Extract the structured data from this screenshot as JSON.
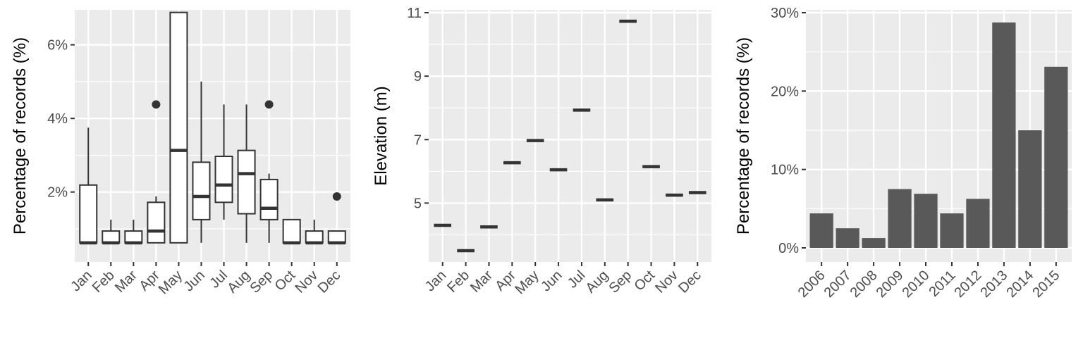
{
  "chart_data": [
    {
      "type": "box",
      "title": "",
      "xlabel": "",
      "ylabel": "Percentage of records (%)",
      "categories": [
        "Jan",
        "Feb",
        "Mar",
        "Apr",
        "May",
        "Jun",
        "Jul",
        "Aug",
        "Sep",
        "Oct",
        "Nov",
        "Dec"
      ],
      "y_ticks": [
        2,
        4,
        6
      ],
      "y_tick_labels": [
        "2%",
        "4%",
        "6%"
      ],
      "ylim": [
        0.1,
        6.95
      ],
      "boxes": [
        {
          "min": 0.62,
          "q1": 0.62,
          "median": 0.62,
          "q3": 2.19,
          "max": 3.75,
          "outliers": []
        },
        {
          "min": 0.62,
          "q1": 0.62,
          "median": 0.62,
          "q3": 0.94,
          "max": 1.25,
          "outliers": []
        },
        {
          "min": 0.62,
          "q1": 0.62,
          "median": 0.62,
          "q3": 0.94,
          "max": 1.25,
          "outliers": []
        },
        {
          "min": 0.62,
          "q1": 0.62,
          "median": 0.94,
          "q3": 1.72,
          "max": 1.88,
          "outliers": [
            4.38
          ]
        },
        {
          "min": 0.62,
          "q1": 0.62,
          "median": 3.13,
          "q3": 6.88,
          "max": 6.88,
          "outliers": []
        },
        {
          "min": 0.62,
          "q1": 1.25,
          "median": 1.88,
          "q3": 2.81,
          "max": 5.0,
          "outliers": []
        },
        {
          "min": 1.25,
          "q1": 1.72,
          "median": 2.19,
          "q3": 2.97,
          "max": 4.38,
          "outliers": []
        },
        {
          "min": 0.62,
          "q1": 1.41,
          "median": 2.5,
          "q3": 3.13,
          "max": 4.38,
          "outliers": []
        },
        {
          "min": 0.62,
          "q1": 1.25,
          "median": 1.56,
          "q3": 2.34,
          "max": 2.5,
          "outliers": [
            4.38
          ]
        },
        {
          "min": 0.62,
          "q1": 0.62,
          "median": 0.62,
          "q3": 1.25,
          "max": 1.25,
          "outliers": []
        },
        {
          "min": 0.62,
          "q1": 0.62,
          "median": 0.62,
          "q3": 0.94,
          "max": 1.25,
          "outliers": []
        },
        {
          "min": 0.62,
          "q1": 0.62,
          "median": 0.62,
          "q3": 0.94,
          "max": 0.94,
          "outliers": [
            1.88
          ]
        }
      ]
    },
    {
      "type": "box",
      "title": "",
      "xlabel": "",
      "ylabel": "Elevation (m)",
      "categories": [
        "Jan",
        "Feb",
        "Mar",
        "Apr",
        "May",
        "Jun",
        "Jul",
        "Aug",
        "Sep",
        "Oct",
        "Nov",
        "Dec"
      ],
      "y_ticks": [
        5,
        7,
        9,
        11
      ],
      "y_tick_labels": [
        "5",
        "7",
        "9",
        "11"
      ],
      "ylim": [
        3.0,
        11.0
      ],
      "values": [
        4.3,
        3.5,
        4.25,
        6.27,
        6.97,
        6.05,
        7.93,
        5.1,
        10.73,
        6.15,
        5.25,
        5.33
      ]
    },
    {
      "type": "bar",
      "title": "",
      "xlabel": "",
      "ylabel": "Percentage of records (%)",
      "categories": [
        "2006",
        "2007",
        "2008",
        "2009",
        "2010",
        "2011",
        "2012",
        "2013",
        "2014",
        "2015"
      ],
      "values": [
        4.4,
        2.5,
        1.25,
        7.5,
        6.9,
        4.4,
        6.25,
        28.75,
        15.0,
        23.1
      ],
      "y_ticks": [
        0,
        10,
        20,
        30
      ],
      "y_tick_labels": [
        "0%",
        "10%",
        "20%",
        "30%"
      ],
      "ylim": [
        0,
        30
      ],
      "bar_color": "#595959"
    }
  ],
  "colors": {
    "panel_background": "#ebebeb",
    "grid": "#ffffff",
    "box_stroke": "#333333",
    "box_fill": "#ffffff",
    "bar_fill": "#595959"
  }
}
